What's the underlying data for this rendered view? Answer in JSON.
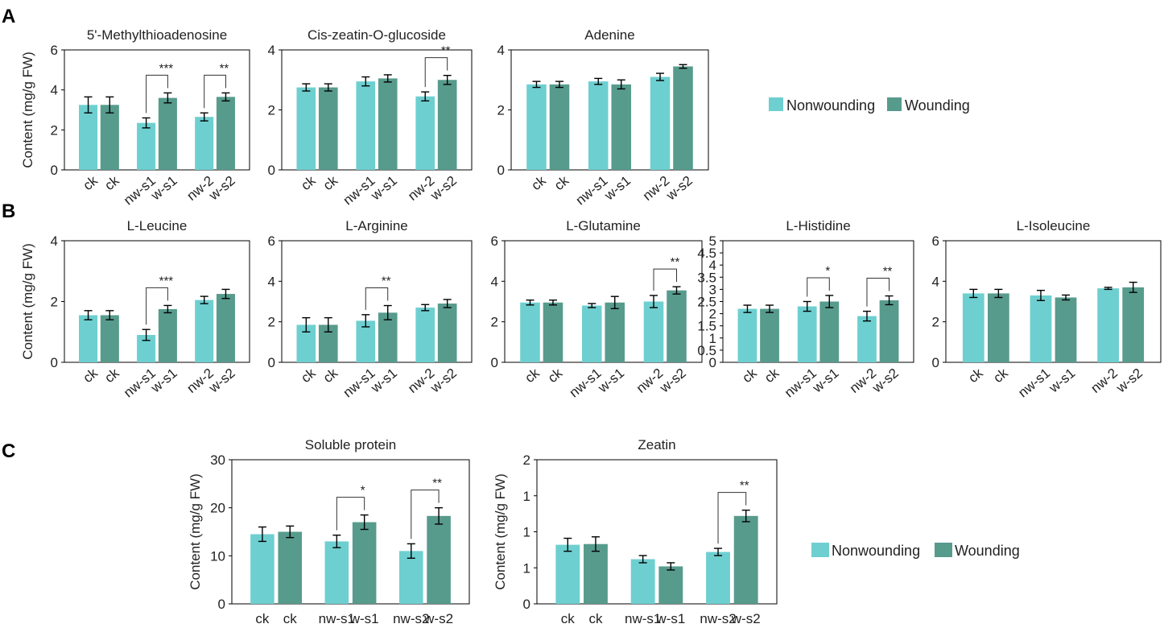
{
  "figure": {
    "panel_labels": [
      "A",
      "B",
      "C"
    ],
    "y_axis_label": "Content (mg/g FW)"
  },
  "legend": {
    "items": [
      {
        "label": "Nonwounding",
        "color": "#6ecfd0"
      },
      {
        "label": "Wounding",
        "color": "#579b8d"
      }
    ]
  },
  "colors": {
    "nonwounding": "#6ecfd0",
    "wounding": "#579b8d",
    "axis": "#000000",
    "text": "#222222"
  },
  "chart_data": [
    {
      "panel": "A",
      "type": "bar",
      "title": "5'-Methylthioadenosine",
      "ylabel": "Content (mg/g FW)",
      "ylim": [
        0,
        6
      ],
      "yticks": [
        "0",
        "2",
        "4",
        "6"
      ],
      "categories": [
        "ck",
        "ck",
        "nw-s1",
        "w-s1",
        "nw-2",
        "w-s2"
      ],
      "groups": [
        "N",
        "W",
        "N",
        "W",
        "N",
        "W"
      ],
      "values": [
        3.25,
        3.25,
        2.35,
        3.6,
        2.65,
        3.65
      ],
      "errors": [
        0.4,
        0.4,
        0.25,
        0.25,
        0.2,
        0.2
      ],
      "significance": [
        {
          "pair": [
            2,
            3
          ],
          "label": "***"
        },
        {
          "pair": [
            4,
            5
          ],
          "label": "**"
        }
      ]
    },
    {
      "panel": "A",
      "type": "bar",
      "title": "Cis-zeatin-O-glucoside",
      "ylabel": "",
      "ylim": [
        0,
        4
      ],
      "yticks": [
        "0",
        "2",
        "4"
      ],
      "categories": [
        "ck",
        "ck",
        "nw-s1",
        "w-s1",
        "nw-2",
        "w-s2"
      ],
      "groups": [
        "N",
        "W",
        "N",
        "W",
        "N",
        "W"
      ],
      "values": [
        2.75,
        2.75,
        2.95,
        3.05,
        2.45,
        3.0
      ],
      "errors": [
        0.12,
        0.12,
        0.15,
        0.12,
        0.15,
        0.15
      ],
      "significance": [
        {
          "pair": [
            4,
            5
          ],
          "label": "**"
        }
      ]
    },
    {
      "panel": "A",
      "type": "bar",
      "title": "Adenine",
      "ylabel": "",
      "ylim": [
        0,
        4
      ],
      "yticks": [
        "0",
        "2",
        "4"
      ],
      "categories": [
        "ck",
        "ck",
        "nw-s1",
        "w-s1",
        "nw-2",
        "w-s2"
      ],
      "groups": [
        "N",
        "W",
        "N",
        "W",
        "N",
        "W"
      ],
      "values": [
        2.85,
        2.85,
        2.95,
        2.85,
        3.1,
        3.45
      ],
      "errors": [
        0.1,
        0.1,
        0.1,
        0.15,
        0.12,
        0.06
      ],
      "significance": []
    },
    {
      "panel": "B",
      "type": "bar",
      "title": "L-Leucine",
      "ylabel": "Content (mg/g FW)",
      "ylim": [
        0,
        4
      ],
      "yticks": [
        "0",
        "2",
        "4"
      ],
      "categories": [
        "ck",
        "ck",
        "nw-s1",
        "w-s1",
        "nw-2",
        "w-s2"
      ],
      "groups": [
        "N",
        "W",
        "N",
        "W",
        "N",
        "W"
      ],
      "values": [
        1.55,
        1.55,
        0.9,
        1.75,
        2.05,
        2.25
      ],
      "errors": [
        0.15,
        0.15,
        0.18,
        0.12,
        0.12,
        0.15
      ],
      "significance": [
        {
          "pair": [
            2,
            3
          ],
          "label": "***"
        }
      ]
    },
    {
      "panel": "B",
      "type": "bar",
      "title": "L-Arginine",
      "ylabel": "",
      "ylim": [
        0,
        6
      ],
      "yticks": [
        "0",
        "2",
        "4",
        "6"
      ],
      "categories": [
        "ck",
        "ck",
        "nw-s1",
        "w-s1",
        "nw-2",
        "w-s2"
      ],
      "groups": [
        "N",
        "W",
        "N",
        "W",
        "N",
        "W"
      ],
      "values": [
        1.85,
        1.85,
        2.05,
        2.45,
        2.7,
        2.9
      ],
      "errors": [
        0.35,
        0.35,
        0.3,
        0.35,
        0.15,
        0.2
      ],
      "significance": [
        {
          "pair": [
            2,
            3
          ],
          "label": "**"
        }
      ]
    },
    {
      "panel": "B",
      "type": "bar",
      "title": "L-Glutamine",
      "ylabel": "",
      "ylim": [
        0,
        6
      ],
      "yticks": [
        "0",
        "2",
        "4",
        "6"
      ],
      "categories": [
        "ck",
        "ck",
        "nw-s1",
        "w-s1",
        "nw-2",
        "w-s2"
      ],
      "groups": [
        "N",
        "W",
        "N",
        "W",
        "N",
        "W"
      ],
      "values": [
        2.95,
        2.95,
        2.8,
        2.95,
        3.0,
        3.55
      ],
      "errors": [
        0.12,
        0.12,
        0.1,
        0.3,
        0.3,
        0.18
      ],
      "significance": [
        {
          "pair": [
            4,
            5
          ],
          "label": "**"
        }
      ]
    },
    {
      "panel": "B",
      "type": "bar",
      "title": "L-Histidine",
      "ylabel": "",
      "ylim": [
        0,
        5
      ],
      "yticks": [
        "0",
        "0.5",
        "1",
        "1.5",
        "2",
        "2.5",
        "3",
        "3.5",
        "4",
        "4.5",
        "5"
      ],
      "categories": [
        "ck",
        "ck",
        "nw-s1",
        "w-s1",
        "nw-2",
        "w-s2"
      ],
      "groups": [
        "N",
        "W",
        "N",
        "W",
        "N",
        "W"
      ],
      "values": [
        2.2,
        2.2,
        2.3,
        2.5,
        1.9,
        2.55
      ],
      "errors": [
        0.15,
        0.15,
        0.2,
        0.25,
        0.2,
        0.18
      ],
      "significance": [
        {
          "pair": [
            2,
            3
          ],
          "label": "*"
        },
        {
          "pair": [
            4,
            5
          ],
          "label": "**"
        }
      ]
    },
    {
      "panel": "B",
      "type": "bar",
      "title": "L-Isoleucine",
      "ylabel": "",
      "ylim": [
        0,
        6
      ],
      "yticks": [
        "0",
        "2",
        "4",
        "6"
      ],
      "categories": [
        "ck",
        "ck",
        "nw-s1",
        "w-s1",
        "nw-2",
        "w-s2"
      ],
      "groups": [
        "N",
        "W",
        "N",
        "W",
        "N",
        "W"
      ],
      "values": [
        3.4,
        3.4,
        3.3,
        3.2,
        3.65,
        3.7
      ],
      "errors": [
        0.2,
        0.2,
        0.25,
        0.12,
        0.05,
        0.25
      ],
      "significance": []
    },
    {
      "panel": "C",
      "type": "bar",
      "title": "Soluble protein",
      "ylabel": "Content (mg/g FW)",
      "ylim": [
        0,
        30
      ],
      "yticks": [
        "0",
        "10",
        "20",
        "30"
      ],
      "categories": [
        "ck",
        "ck",
        "nw-s1",
        "w-s1",
        "nw-s2",
        "w-s2"
      ],
      "groups": [
        "N",
        "W",
        "N",
        "W",
        "N",
        "W"
      ],
      "values": [
        14.5,
        15.0,
        13.0,
        17.0,
        11.0,
        18.3
      ],
      "errors": [
        1.5,
        1.2,
        1.3,
        1.5,
        1.5,
        1.7
      ],
      "significance": [
        {
          "pair": [
            2,
            3
          ],
          "label": "*"
        },
        {
          "pair": [
            4,
            5
          ],
          "label": "**"
        }
      ]
    },
    {
      "panel": "C",
      "type": "bar",
      "title": "Zeatin",
      "ylabel": "Content (mg/g FW)",
      "ylim": [
        0,
        2
      ],
      "yticks": [
        "0",
        "1",
        "1",
        "1",
        "2"
      ],
      "categories": [
        "ck",
        "ck",
        "nw-s1",
        "w-s1",
        "nw-s2",
        "w-s2"
      ],
      "groups": [
        "N",
        "W",
        "N",
        "W",
        "N",
        "W"
      ],
      "values": [
        0.82,
        0.83,
        0.62,
        0.52,
        0.72,
        1.22
      ],
      "errors": [
        0.09,
        0.1,
        0.05,
        0.05,
        0.05,
        0.08
      ],
      "significance": [
        {
          "pair": [
            4,
            5
          ],
          "label": "**"
        }
      ]
    }
  ]
}
